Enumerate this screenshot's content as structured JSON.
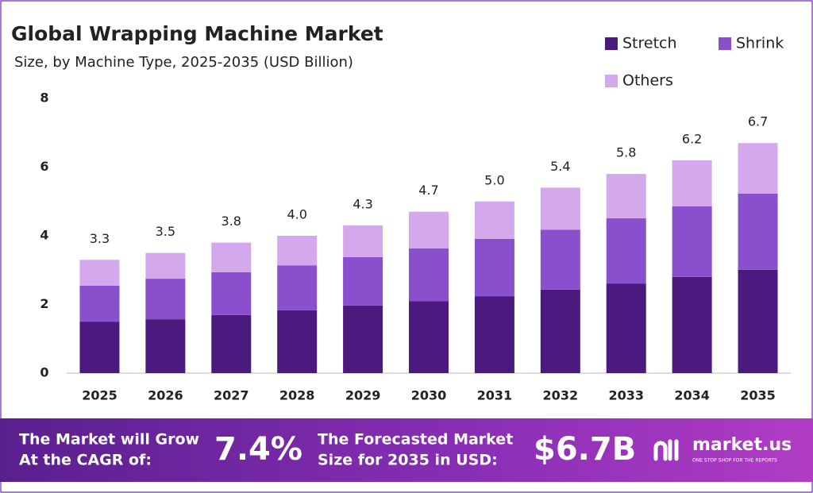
{
  "chart_data": {
    "type": "stacked_bar",
    "title": "Global Wrapping Machine Market",
    "subtitle": "Size, by Machine Type, 2025-2035 (USD Billion)",
    "categories": [
      "2025",
      "2026",
      "2027",
      "2028",
      "2029",
      "2030",
      "2031",
      "2032",
      "2033",
      "2034",
      "2035"
    ],
    "series": [
      {
        "name": "Stretch",
        "color": "#4a1a7e",
        "values": [
          1.5,
          1.57,
          1.69,
          1.83,
          1.97,
          2.1,
          2.24,
          2.43,
          2.61,
          2.8,
          3.01
        ]
      },
      {
        "name": "Shrink",
        "color": "#8a4fcc",
        "values": [
          1.05,
          1.18,
          1.25,
          1.31,
          1.41,
          1.53,
          1.67,
          1.75,
          1.9,
          2.06,
          2.22
        ]
      },
      {
        "name": "Others",
        "color": "#d3a8ec",
        "values": [
          0.75,
          0.75,
          0.86,
          0.86,
          0.92,
          1.07,
          1.09,
          1.22,
          1.29,
          1.34,
          1.47
        ]
      }
    ],
    "totals": {
      "values": [
        3.3,
        3.5,
        3.8,
        4.0,
        4.3,
        4.7,
        5.0,
        5.4,
        5.8,
        6.2,
        6.7
      ],
      "value_labels": [
        "3.3",
        "3.5",
        "3.8",
        "4.0",
        "4.3",
        "4.7",
        "5.0",
        "5.4",
        "5.8",
        "6.2",
        "6.7"
      ]
    },
    "ylim": [
      0,
      8
    ],
    "yticks": [
      0,
      2,
      4,
      6,
      8
    ],
    "grid": false,
    "legend": "top-right"
  },
  "footer": {
    "cagr_text": [
      "The Market will Grow",
      "At the CAGR of:"
    ],
    "cagr": "7.4%",
    "forecast_text": [
      "The Forecasted Market",
      "Size for 2035 in USD:"
    ],
    "forecast": "$6.7B",
    "brand": "market.us",
    "tagline": "ONE STOP SHOP FOR THE REPORTS"
  }
}
